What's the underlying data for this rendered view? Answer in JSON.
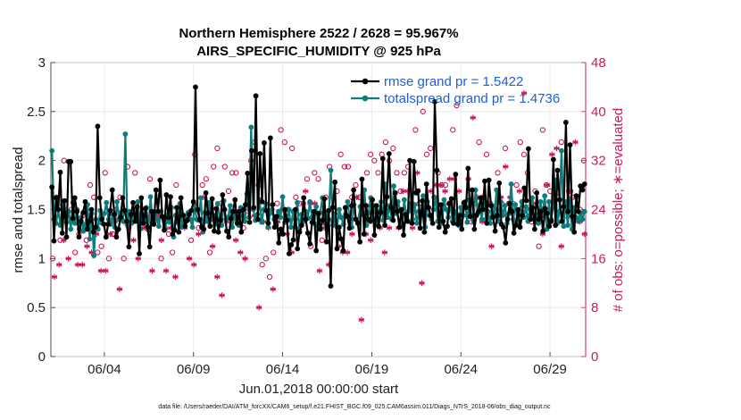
{
  "chart_data": {
    "type": "line",
    "title": "Northern Hemisphere 2522 / 2628 = 95.967%",
    "subtitle": "AIRS_SPECIFIC_HUMIDITY @ 925 hPa",
    "xlabel": "Jun.01,2018 00:00:00 start",
    "ylabel": "rmse and totalspread",
    "ylabel_right": "# of obs: o=possible; ∗=evaluated",
    "xlim": [
      1.0,
      31.0
    ],
    "ylim": [
      0,
      3
    ],
    "ylim_right": [
      0,
      48
    ],
    "xticks": [
      4,
      9,
      14,
      19,
      24,
      29
    ],
    "xtick_labels": [
      "06/04",
      "06/09",
      "06/14",
      "06/19",
      "06/24",
      "06/29"
    ],
    "yticks": [
      "0",
      "0.5",
      "1",
      "1.5",
      "2",
      "2.5",
      "3"
    ],
    "yticks_right": [
      "0",
      "8",
      "16",
      "24",
      "32",
      "40",
      "48"
    ],
    "legend_position": "top-right",
    "footnote": "data file: /Users/raeder/DAI/ATM_forcXX/CAM6_setup/f.e21.FHIST_BGC.f09_025.CAM6assim.011/Diags_NTrS_2018-06/obs_diag_output.nc",
    "colors": {
      "rmse": "#000000",
      "spread": "#0e7c7b",
      "obs": "#d0145a",
      "legend_text": "#1f5fd6"
    },
    "series": [
      {
        "name": "rmse grand pr = 1.5422",
        "axis": "left",
        "values": [
          1.73,
          1.18,
          1.62,
          1.5,
          1.88,
          1.26,
          1.59,
          1.22,
          1.99,
          1.99,
          1.41,
          1.62,
          1.48,
          1.22,
          1.38,
          1.47,
          1.58,
          1.3,
          1.38,
          1.5,
          1.27,
          1.32,
          2.35,
          1.62,
          1.4,
          1.35,
          1.22,
          1.35,
          1.49,
          1.7,
          1.45,
          1.22,
          1.3,
          1.42,
          1.62,
          1.49,
          1.38,
          1.12,
          1.45,
          1.57,
          1.38,
          1.53,
          1.05,
          1.62,
          1.36,
          1.51,
          1.32,
          1.12,
          1.48,
          1.35,
          1.7,
          1.48,
          1.8,
          1.43,
          1.29,
          1.65,
          1.42,
          1.63,
          1.25,
          1.29,
          1.52,
          1.27,
          1.62,
          1.44,
          1.33,
          1.39,
          1.45,
          1.49,
          1.58,
          2.75,
          1.5,
          1.4,
          1.32,
          1.3,
          1.67,
          1.46,
          1.33,
          1.61,
          1.28,
          1.51,
          1.27,
          1.39,
          1.65,
          1.5,
          1.28,
          1.22,
          1.41,
          1.48,
          1.6,
          1.36,
          1.48,
          1.27,
          1.5,
          1.55,
          1.87,
          1.37,
          2.1,
          1.52,
          2.66,
          1.4,
          2.07,
          1.58,
          2.18,
          1.49,
          1.36,
          2.23,
          1.55,
          1.32,
          1.43,
          1.16,
          1.3,
          1.25,
          1.5,
          1.39,
          1.05,
          1.14,
          1.19,
          1.5,
          1.1,
          1.27,
          1.34,
          1.62,
          1.4,
          1.26,
          1.15,
          1.37,
          1.48,
          1.08,
          1.46,
          1.3,
          1.39,
          1.61,
          1.17,
          1.49,
          0.72,
          1.52,
          1.78,
          1.1,
          1.32,
          1.2,
          1.08,
          1.52,
          1.43,
          1.31,
          1.54,
          1.7,
          1.4,
          1.36,
          1.17,
          1.81,
          1.25,
          1.54,
          1.4,
          1.38,
          1.6,
          1.24,
          1.54,
          1.33,
          1.47,
          2.02,
          1.34,
          1.63,
          2.07,
          1.52,
          1.39,
          1.67,
          1.48,
          1.32,
          1.5,
          1.24,
          1.45,
          1.38,
          2.0,
          1.36,
          1.99,
          1.67,
          1.69,
          1.31,
          1.59,
          1.27,
          1.76,
          1.52,
          1.44,
          1.36,
          2.6,
          1.9,
          1.32,
          1.55,
          1.38,
          1.27,
          1.33,
          1.56,
          1.61,
          1.36,
          1.86,
          1.35,
          1.44,
          1.3,
          1.57,
          1.52,
          1.92,
          1.43,
          1.7,
          1.3,
          1.44,
          1.48,
          1.62,
          1.5,
          1.79,
          1.36,
          1.8,
          1.54,
          1.42,
          1.28,
          1.44,
          1.77,
          1.35,
          1.32,
          1.16,
          1.4,
          1.56,
          1.48,
          1.26,
          1.34,
          1.5,
          1.32,
          1.44,
          1.72,
          1.59,
          2.12,
          1.4,
          1.52,
          1.3,
          1.67,
          1.4,
          1.48,
          1.28,
          1.51,
          1.46,
          1.33,
          1.38,
          2.01,
          1.34,
          1.9,
          1.6,
          1.38,
          1.53,
          2.39,
          1.48,
          2.16,
          1.43,
          1.27,
          1.64,
          1.48,
          1.74,
          1.7,
          1.76
        ]
      },
      {
        "name": "totalspread grand pr = 1.4736",
        "axis": "left",
        "values": [
          2.1,
          1.4,
          1.36,
          1.5,
          1.34,
          1.55,
          1.44,
          1.37,
          1.48,
          1.3,
          1.57,
          1.36,
          1.5,
          1.3,
          1.42,
          1.28,
          1.35,
          1.55,
          1.2,
          1.46,
          1.03,
          1.4,
          1.3,
          1.49,
          1.36,
          1.46,
          1.57,
          1.4,
          1.35,
          1.45,
          1.32,
          1.58,
          1.4,
          1.47,
          1.38,
          2.27,
          1.34,
          1.48,
          1.36,
          1.5,
          1.42,
          1.58,
          1.3,
          1.44,
          1.37,
          1.52,
          1.29,
          1.63,
          1.37,
          1.46,
          1.4,
          1.33,
          1.48,
          1.42,
          1.3,
          1.44,
          1.37,
          1.52,
          1.22,
          1.44,
          1.37,
          1.56,
          1.32,
          1.44,
          1.38,
          1.47,
          1.4,
          1.32,
          1.55,
          1.4,
          1.39,
          1.62,
          1.27,
          1.47,
          1.38,
          1.57,
          1.4,
          1.44,
          1.35,
          1.56,
          1.41,
          1.34,
          1.59,
          1.4,
          1.42,
          1.54,
          1.32,
          1.46,
          1.4,
          1.34,
          1.52,
          1.44,
          1.38,
          1.66,
          1.42,
          2.34,
          1.5,
          1.39,
          1.45,
          1.6,
          1.37,
          1.5,
          1.56,
          1.32,
          1.46,
          1.5,
          1.4,
          1.34,
          1.48,
          1.42,
          1.63,
          1.37,
          1.4,
          1.5,
          1.32,
          1.48,
          1.4,
          1.57,
          1.3,
          1.45,
          1.38,
          1.48,
          1.41,
          1.58,
          1.42,
          1.36,
          1.53,
          1.33,
          1.47,
          1.62,
          1.36,
          1.46,
          1.4,
          1.9,
          1.34,
          1.46,
          1.32,
          1.5,
          1.42,
          1.35,
          1.45,
          1.58,
          1.4,
          1.32,
          1.55,
          1.4,
          1.38,
          1.53,
          1.45,
          1.7,
          1.34,
          1.47,
          1.62,
          1.4,
          1.54,
          1.36,
          1.48,
          1.58,
          1.39,
          1.76,
          1.42,
          1.54,
          1.4,
          1.74,
          1.46,
          1.58,
          1.5,
          1.36,
          1.6,
          1.42,
          1.48,
          1.55,
          1.4,
          1.55,
          1.36,
          1.48,
          1.44,
          1.64,
          1.32,
          1.58,
          1.44,
          1.4,
          1.5,
          1.62,
          1.38,
          1.46,
          1.36,
          1.6,
          1.5,
          1.42,
          1.56,
          1.38,
          1.48,
          1.4,
          1.34,
          1.52,
          1.44,
          1.58,
          1.37,
          1.6,
          1.44,
          1.38,
          1.7,
          1.46,
          1.54,
          1.4,
          1.62,
          1.4,
          1.48,
          1.36,
          1.54,
          1.44,
          1.7,
          1.38,
          1.58,
          1.44,
          1.54,
          1.36,
          1.46,
          1.76,
          1.4,
          1.55,
          1.36,
          1.48,
          1.58,
          1.42,
          1.53,
          1.38,
          1.5,
          1.62,
          1.4,
          1.45,
          1.36,
          1.58,
          1.44,
          1.64,
          1.3,
          1.58,
          1.4,
          1.52,
          1.8,
          1.36,
          1.48,
          2.1,
          1.33,
          1.58,
          1.34,
          1.6,
          1.3,
          1.52,
          1.42,
          1.38,
          1.46,
          1.4,
          1.48
        ]
      },
      {
        "name": "possible obs",
        "axis": "right",
        "marker": "o",
        "values": [
          16,
          26,
          19,
          32,
          23,
          24,
          17,
          20,
          23,
          19,
          28,
          26,
          17,
          18,
          30,
          16,
          20,
          24,
          26,
          16,
          31,
          23,
          30,
          23,
          22,
          21,
          29,
          22,
          23,
          16,
          21,
          20,
          17,
          28,
          22,
          22,
          23,
          19,
          33,
          21,
          28,
          29,
          17,
          31,
          34,
          25,
          31,
          27,
          30,
          30,
          23,
          21,
          23,
          32,
          35,
          28,
          15,
          16,
          13,
          17,
          25,
          37,
          35,
          24,
          34,
          26,
          25,
          25,
          29,
          18,
          30,
          29,
          19,
          26,
          31,
          26,
          27,
          33,
          31,
          31,
          26,
          28,
          26,
          24,
          30,
          33,
          32,
          30,
          33,
          35,
          32,
          34,
          30,
          27,
          30,
          31,
          25,
          37,
          25,
          40,
          33,
          34,
          26,
          30,
          28,
          28,
          25,
          37,
          41,
          22,
          25,
          25,
          22,
          25,
          35,
          26,
          33,
          25,
          23,
          30,
          25,
          34,
          25,
          25,
          28,
          35,
          33,
          30,
          22,
          27,
          18,
          37,
          28,
          27,
          25,
          26,
          35,
          23,
          27,
          26,
          26,
          24,
          32
        ]
      },
      {
        "name": "evaluated obs",
        "axis": "right",
        "marker": "*",
        "values": [
          13,
          15,
          19,
          16,
          22,
          15,
          15,
          18,
          17,
          20,
          14,
          14,
          20,
          22,
          11,
          22,
          21,
          19,
          16,
          21,
          23,
          14,
          23,
          19,
          14,
          21,
          13,
          23,
          21,
          16,
          15,
          20,
          26,
          22,
          18,
          13,
          10,
          22,
          23,
          19,
          17,
          16,
          24,
          23,
          8,
          22,
          21,
          11,
          22,
          24,
          20,
          17,
          21,
          22,
          27,
          25,
          25,
          14,
          21,
          15,
          22,
          18,
          17,
          17,
          20,
          26,
          6,
          20,
          19,
          24,
          21,
          17,
          21,
          25,
          21,
          27,
          27,
          21,
          30,
          12,
          25,
          27,
          28,
          28,
          27,
          29,
          29,
          27,
          23,
          29,
          39,
          26,
          22,
          25,
          18,
          24,
          26,
          31,
          26,
          22,
          27,
          43,
          23,
          25,
          22,
          20,
          28,
          33,
          34,
          18,
          24,
          27,
          35,
          22,
          20
        ]
      }
    ]
  }
}
